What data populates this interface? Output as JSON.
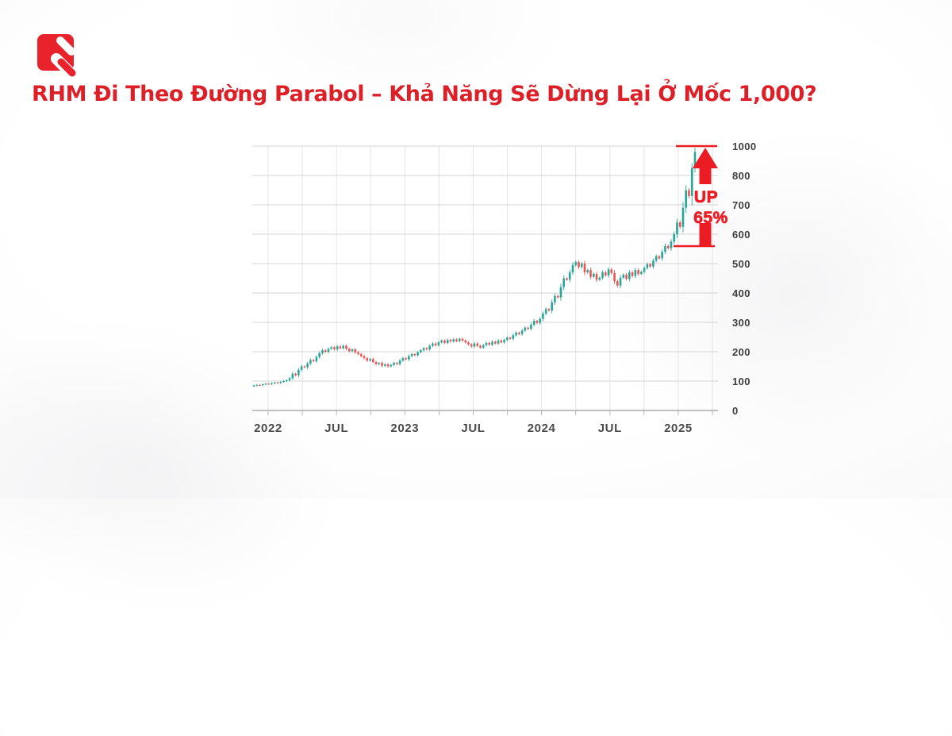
{
  "header": {
    "title": "RHM Đi Theo Đường Parabol – Khả Năng Sẽ Dừng Lại Ở Mốc 1,000?"
  },
  "logo": {
    "name": "brand-mark",
    "color": "#e8232b"
  },
  "colors": {
    "up_candle": "#26a69a",
    "down_candle": "#ef5350",
    "annotation_red": "#ec1c24",
    "title_red": "#dd1f28",
    "grid_vertical": "#e4e4e6",
    "grid_horizontal": "#d4d4d6",
    "axis_line": "#9b9b9b",
    "tick_label": "#4a4a4a"
  },
  "annotation": {
    "line1": "UP",
    "line2": "65%",
    "resistance_level": 1000,
    "breakout_level": 560
  },
  "chart_data": {
    "type": "candlestick",
    "symbol": "RHM",
    "timeframe": "weekly",
    "title": "RHM price, parabolic advance toward 1,000",
    "x_tick_labels": [
      "2022",
      "JUL",
      "2023",
      "JUL",
      "2024",
      "JUL",
      "2025"
    ],
    "y_tick_labels": [
      "1000",
      "800",
      "700",
      "600",
      "500",
      "400",
      "300",
      "200",
      "100",
      "0"
    ],
    "y_tick_values": [
      1000,
      800,
      700,
      600,
      500,
      400,
      300,
      200,
      100,
      0
    ],
    "y_scale_note": "ticks equally spaced; top interval jumps 800 to 1000",
    "grid": true,
    "legend": false,
    "first_open": 83,
    "closes": [
      85,
      87,
      86,
      89,
      91,
      90,
      93,
      95,
      94,
      97,
      100,
      103,
      110,
      125,
      120,
      138,
      150,
      147,
      160,
      172,
      168,
      182,
      195,
      205,
      200,
      210,
      215,
      208,
      218,
      212,
      220,
      210,
      202,
      208,
      198,
      192,
      185,
      178,
      170,
      175,
      165,
      158,
      162,
      152,
      157,
      150,
      155,
      162,
      158,
      170,
      178,
      174,
      185,
      192,
      188,
      198,
      205,
      212,
      208,
      220,
      228,
      222,
      232,
      238,
      230,
      240,
      235,
      242,
      236,
      244,
      238,
      232,
      225,
      218,
      228,
      220,
      214,
      222,
      230,
      224,
      234,
      228,
      238,
      232,
      240,
      248,
      244,
      256,
      265,
      260,
      272,
      282,
      278,
      292,
      305,
      298,
      312,
      330,
      345,
      340,
      368,
      390,
      385,
      420,
      450,
      445,
      470,
      495,
      505,
      488,
      500,
      470,
      478,
      455,
      465,
      445,
      452,
      470,
      460,
      480,
      468,
      440,
      425,
      452,
      462,
      448,
      470,
      458,
      478,
      465,
      472,
      485,
      498,
      490,
      510,
      525,
      518,
      540,
      560,
      552,
      575,
      600,
      640,
      625,
      690,
      750,
      730,
      850,
      960
    ]
  }
}
